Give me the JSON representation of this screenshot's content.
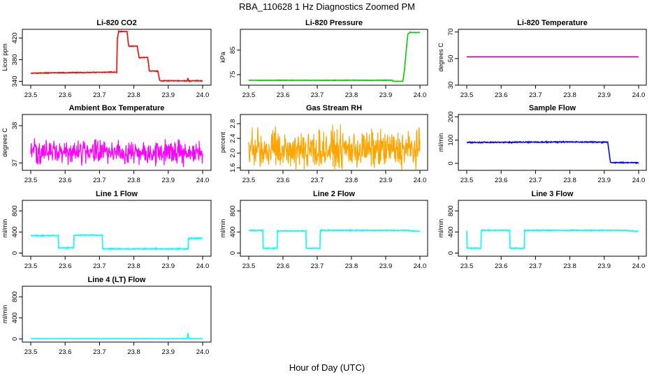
{
  "figure": {
    "title": "RBA_110628  1 Hz Diagnostics Zoomed PM",
    "xlabel": "Hour of Day (UTC)"
  },
  "chart_data": [
    {
      "type": "line",
      "title": "Li-820 CO2",
      "ylabel": "Licor ppm",
      "color": "#ff0000",
      "xlim": [
        23.5,
        24.0
      ],
      "ylim": [
        333,
        436
      ],
      "xticks": [
        "23.5",
        "23.6",
        "23.7",
        "23.8",
        "23.9",
        "24.0"
      ],
      "yticks": [
        340,
        380,
        420
      ],
      "x": [
        23.5,
        23.58,
        23.6,
        23.75,
        23.752,
        23.756,
        23.76,
        23.78,
        23.785,
        23.79,
        23.81,
        23.815,
        23.82,
        23.84,
        23.845,
        23.85,
        23.87,
        23.875,
        23.88,
        23.955,
        23.957,
        23.96,
        23.965,
        24.0
      ],
      "y": [
        355,
        356,
        356,
        357,
        420,
        432,
        432,
        432,
        405,
        405,
        405,
        384,
        384,
        384,
        359,
        359,
        359,
        342,
        341,
        341,
        346,
        340,
        341,
        341
      ],
      "noise": 1
    },
    {
      "type": "line",
      "title": "Li-820 Pressure",
      "ylabel": "kPa",
      "color": "#00cc00",
      "xlim": [
        23.5,
        24.0
      ],
      "ylim": [
        70.7,
        93.5
      ],
      "xticks": [
        "23.5",
        "23.6",
        "23.7",
        "23.8",
        "23.9",
        "24.0"
      ],
      "yticks": [
        75,
        85
      ],
      "x": [
        23.5,
        23.92,
        23.921,
        23.95,
        23.955,
        23.962,
        23.965,
        23.97,
        24.0
      ],
      "y": [
        72.7,
        72.7,
        72.3,
        72.3,
        77,
        88,
        91.5,
        92.2,
        92.2
      ],
      "noise": 0.15
    },
    {
      "type": "line",
      "title": "Li-820 Temperature",
      "ylabel": "degrees C",
      "color": "#aa00aa",
      "xlim": [
        23.5,
        24.0
      ],
      "ylim": [
        30,
        72
      ],
      "xticks": [
        "23.5",
        "23.6",
        "23.7",
        "23.8",
        "23.9",
        "24.0"
      ],
      "yticks": [
        30,
        50,
        70
      ],
      "x": [
        23.5,
        24.0
      ],
      "y": [
        51.3,
        51.3
      ],
      "noise": 0
    },
    {
      "type": "line",
      "title": "Ambient Box Temperature",
      "ylabel": "degrees C",
      "color": "#ff00ff",
      "xlim": [
        23.5,
        24.0
      ],
      "ylim": [
        36.8,
        38.3
      ],
      "xticks": [
        "23.5",
        "23.6",
        "23.7",
        "23.8",
        "23.9",
        "24.0"
      ],
      "yticks": [
        37.0,
        38.0
      ],
      "x": [
        23.5,
        24.0
      ],
      "y": [
        37.3,
        37.3
      ],
      "noise": 0.45
    },
    {
      "type": "line",
      "title": "Gas Stream RH",
      "ylabel": "percent",
      "color": "#ffa500",
      "xlim": [
        23.5,
        24.0
      ],
      "ylim": [
        1.53,
        3.05
      ],
      "xticks": [
        "23.5",
        "23.6",
        "23.7",
        "23.8",
        "23.9",
        "24.0"
      ],
      "yticks": [
        1.6,
        2.0,
        2.4,
        2.8
      ],
      "x": [
        23.5,
        24.0
      ],
      "y": [
        2.1,
        2.1
      ],
      "noise": 0.75
    },
    {
      "type": "line",
      "title": "Sample Flow",
      "ylabel": "ml/min",
      "color": "#0000ff",
      "xlim": [
        23.5,
        24.0
      ],
      "ylim": [
        -30,
        210
      ],
      "xticks": [
        "23.5",
        "23.6",
        "23.7",
        "23.8",
        "23.9",
        "24.0"
      ],
      "yticks": [
        0,
        100,
        200
      ],
      "x": [
        23.5,
        23.8,
        23.91,
        23.913,
        23.918,
        24.0
      ],
      "y": [
        90,
        92,
        91,
        60,
        3,
        3
      ],
      "noise": 3
    },
    {
      "type": "line",
      "title": "Line 1 Flow",
      "ylabel": "ml/min",
      "color": "#00ffff",
      "xlim": [
        23.5,
        24.0
      ],
      "ylim": [
        -60,
        1000
      ],
      "xticks": [
        "23.5",
        "23.6",
        "23.7",
        "23.8",
        "23.9",
        "24.0"
      ],
      "yticks": [
        0,
        400,
        800
      ],
      "x": [
        23.5,
        23.58,
        23.581,
        23.625,
        23.626,
        23.708,
        23.709,
        23.958,
        23.959,
        24.0
      ],
      "y": [
        330,
        330,
        100,
        100,
        340,
        340,
        80,
        80,
        280,
        280
      ],
      "noise": 15
    },
    {
      "type": "line",
      "title": "Line 2 Flow",
      "ylabel": "ml/min",
      "color": "#00ffff",
      "xlim": [
        23.5,
        24.0
      ],
      "ylim": [
        -60,
        1000
      ],
      "xticks": [
        "23.5",
        "23.6",
        "23.7",
        "23.8",
        "23.9",
        "24.0"
      ],
      "yticks": [
        0,
        400,
        800
      ],
      "x": [
        23.5,
        23.541,
        23.542,
        23.583,
        23.584,
        23.667,
        23.668,
        23.708,
        23.709,
        23.96,
        24.0
      ],
      "y": [
        430,
        430,
        90,
        90,
        420,
        420,
        90,
        90,
        430,
        430,
        410
      ],
      "noise": 12
    },
    {
      "type": "line",
      "title": "Line 3 Flow",
      "ylabel": "ml/min",
      "color": "#00ffff",
      "xlim": [
        23.5,
        24.0
      ],
      "ylim": [
        -60,
        1000
      ],
      "xticks": [
        "23.5",
        "23.6",
        "23.7",
        "23.8",
        "23.9",
        "24.0"
      ],
      "yticks": [
        0,
        400,
        800
      ],
      "x": [
        23.5,
        23.5,
        23.501,
        23.541,
        23.542,
        23.625,
        23.626,
        23.667,
        23.668,
        23.96,
        24.0
      ],
      "y": [
        430,
        430,
        90,
        90,
        430,
        430,
        90,
        90,
        430,
        430,
        410
      ],
      "noise": 12
    },
    {
      "type": "line",
      "title": "Line 4 (LT) Flow",
      "ylabel": "ml/min",
      "color": "#00ffff",
      "xlim": [
        23.5,
        24.0
      ],
      "ylim": [
        -60,
        1000
      ],
      "xticks": [
        "23.5",
        "23.6",
        "23.7",
        "23.8",
        "23.9",
        "24.0"
      ],
      "yticks": [
        0,
        400,
        800
      ],
      "x": [
        23.5,
        23.955,
        23.957,
        23.96,
        24.0
      ],
      "y": [
        5,
        5,
        110,
        5,
        5
      ],
      "noise": 4
    }
  ]
}
